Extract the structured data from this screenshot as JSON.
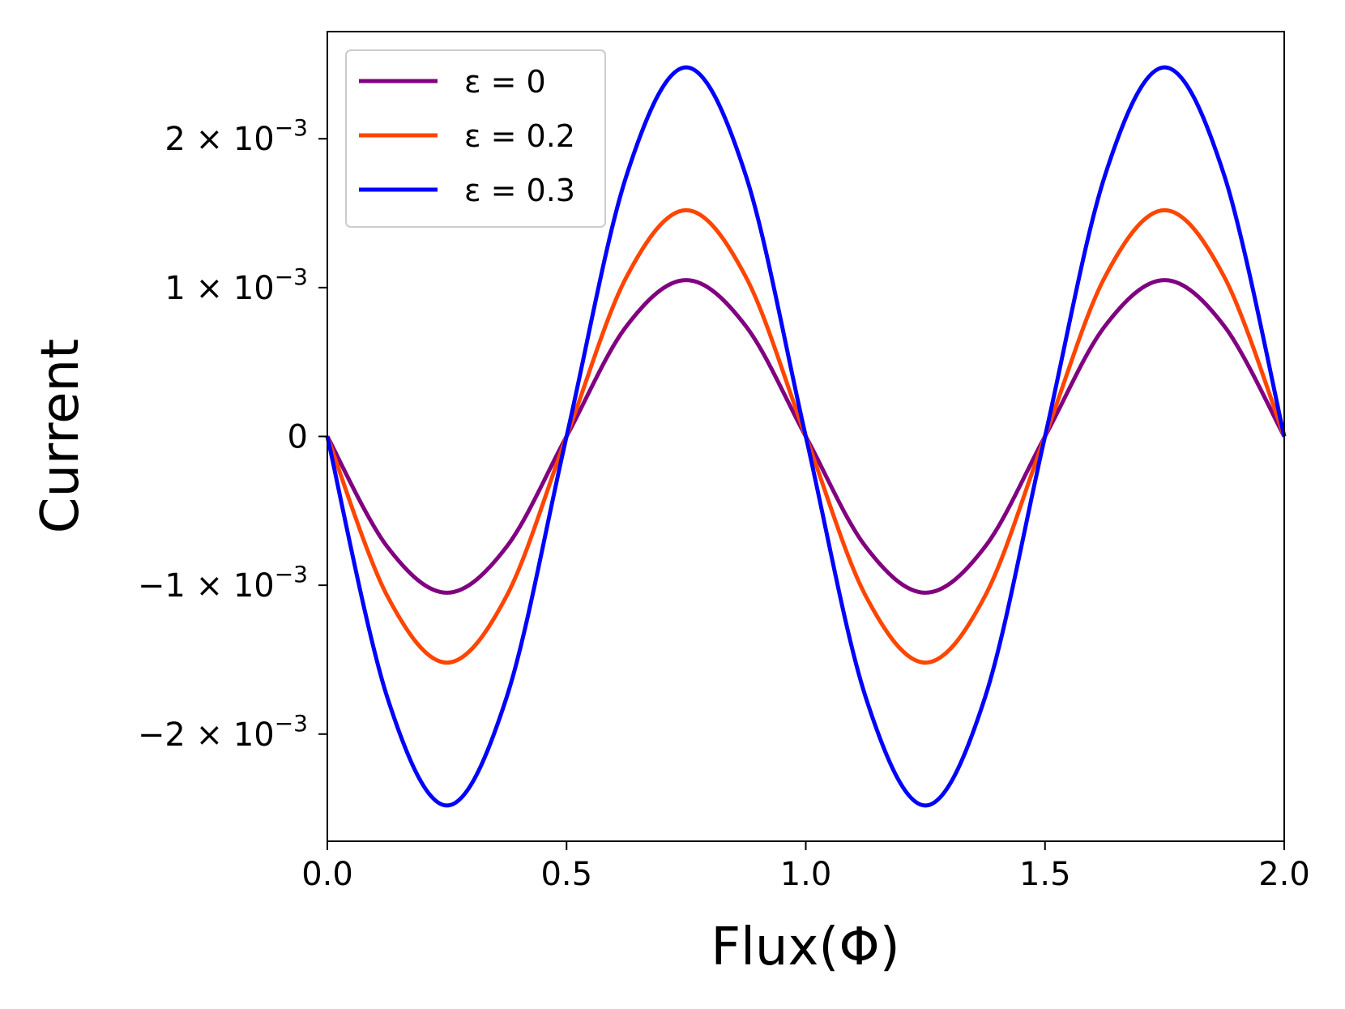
{
  "chart_data": {
    "type": "line",
    "xlabel": "Flux(Φ)",
    "ylabel": "Current",
    "xlim": [
      0,
      2
    ],
    "ylim": [
      -0.00272,
      0.00272
    ],
    "x_ticks": [
      0,
      0.5,
      1.0,
      1.5,
      2.0
    ],
    "x_tick_labels": [
      "0.0",
      "0.5",
      "1.0",
      "1.5",
      "2.0"
    ],
    "y_ticks": [
      {
        "value": 0.002,
        "mantissa": "2",
        "exponent": "−3"
      },
      {
        "value": 0.001,
        "mantissa": "1",
        "exponent": "−3"
      },
      {
        "value": 0,
        "mantissa": "0",
        "exponent": ""
      },
      {
        "value": -0.001,
        "mantissa": "−1",
        "exponent": "−3"
      },
      {
        "value": -0.002,
        "mantissa": "−2",
        "exponent": "−3"
      }
    ],
    "y_tick_base": "× 10",
    "grid": false,
    "legend_position": "top-left",
    "series": [
      {
        "name": "ε = 0",
        "color": "#800080",
        "x": [
          0.0,
          0.125,
          0.25,
          0.375,
          0.5,
          0.625,
          0.75,
          0.875,
          1.0,
          1.125,
          1.25,
          1.375,
          1.5,
          1.625,
          1.75,
          1.875,
          2.0
        ],
        "y": [
          0,
          -0.00074,
          -0.00105,
          -0.00074,
          0,
          0.00074,
          0.00105,
          0.00074,
          0,
          -0.00074,
          -0.00105,
          -0.00074,
          0,
          0.00074,
          0.00105,
          0.00074,
          0
        ]
      },
      {
        "name": "ε = 0.2",
        "color": "#ff4500",
        "x": [
          0.0,
          0.125,
          0.25,
          0.375,
          0.5,
          0.625,
          0.75,
          0.875,
          1.0,
          1.125,
          1.25,
          1.375,
          1.5,
          1.625,
          1.75,
          1.875,
          2.0
        ],
        "y": [
          0,
          -0.00107,
          -0.00152,
          -0.00107,
          0,
          0.00107,
          0.00152,
          0.00107,
          0,
          -0.00107,
          -0.00152,
          -0.00107,
          0,
          0.00107,
          0.00152,
          0.00107,
          0
        ]
      },
      {
        "name": "ε = 0.3",
        "color": "#0000ff",
        "x": [
          0.0,
          0.125,
          0.25,
          0.375,
          0.5,
          0.625,
          0.75,
          0.875,
          1.0,
          1.125,
          1.25,
          1.375,
          1.5,
          1.625,
          1.75,
          1.875,
          2.0
        ],
        "y": [
          0,
          -0.00175,
          -0.00248,
          -0.00175,
          0,
          0.00175,
          0.00248,
          0.00175,
          0,
          -0.00175,
          -0.00248,
          -0.00175,
          0,
          0.00175,
          0.00248,
          0.00175,
          0
        ]
      }
    ]
  }
}
